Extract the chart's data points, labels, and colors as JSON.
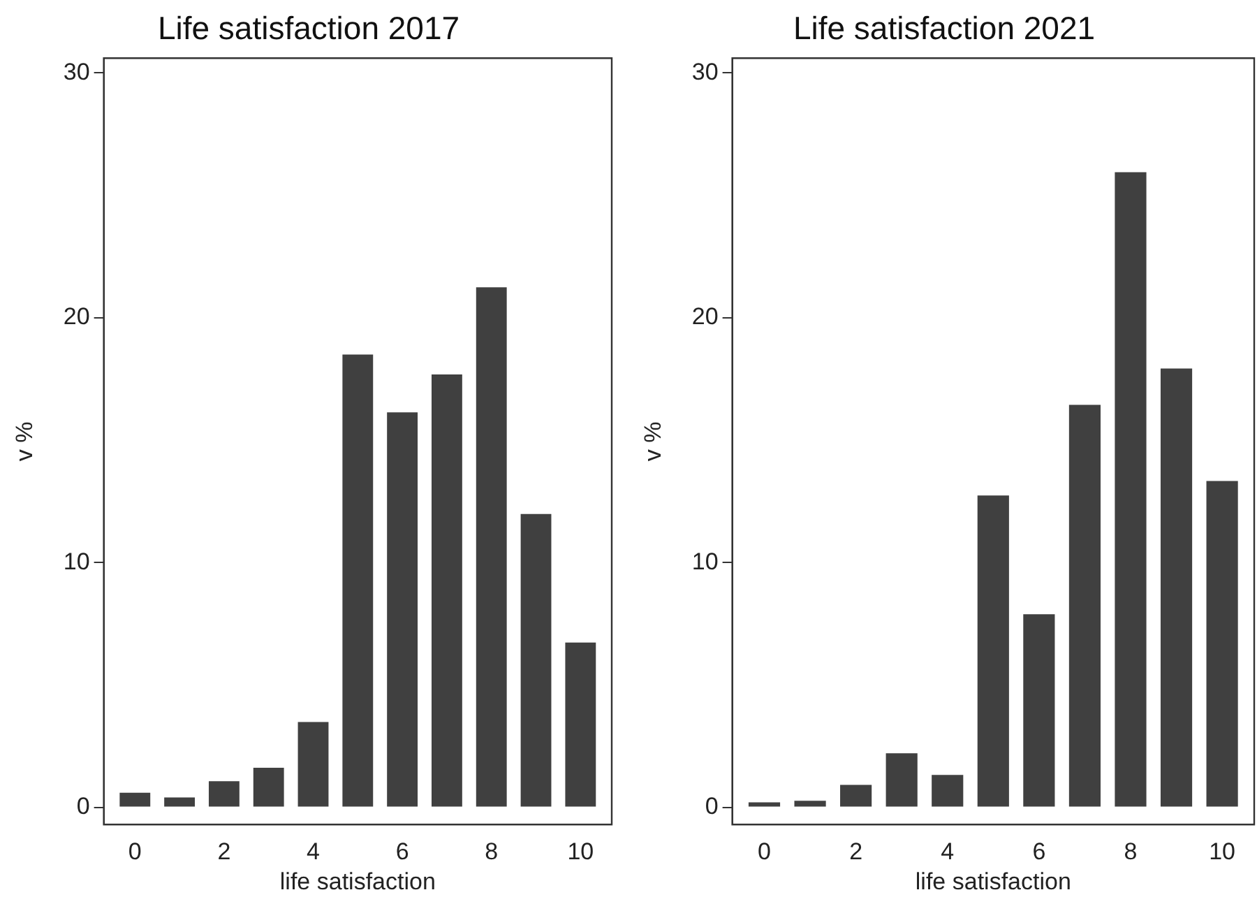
{
  "chart_data": [
    {
      "type": "bar",
      "title": "Life satisfaction 2017",
      "xlabel": "life satisfaction",
      "ylabel": "v %",
      "x": [
        0,
        1,
        2,
        3,
        4,
        5,
        6,
        7,
        8,
        9,
        10
      ],
      "series": [
        {
          "color": "#404040",
          "values": [
            0.66,
            0.47,
            1.13,
            1.68,
            3.55,
            18.55,
            16.19,
            17.74,
            21.3,
            12.04,
            6.79
          ]
        }
      ],
      "xlim": [
        -0.7,
        10.7
      ],
      "xticks": [
        0,
        2,
        4,
        6,
        8,
        10
      ],
      "ylim": [
        -0.7,
        30.6
      ],
      "yticks": [
        0,
        10,
        20,
        30
      ],
      "grid": false,
      "legend": false
    },
    {
      "type": "bar",
      "title": "Life satisfaction 2021",
      "xlabel": "life satisfaction",
      "ylabel": "v %",
      "x": [
        0,
        1,
        2,
        3,
        4,
        5,
        6,
        7,
        8,
        9,
        10
      ],
      "series": [
        {
          "color": "#404040",
          "values": [
            0.27,
            0.33,
            0.98,
            2.27,
            1.39,
            12.8,
            7.95,
            16.5,
            26.0,
            17.98,
            13.39
          ]
        }
      ],
      "xlim": [
        -0.7,
        10.7
      ],
      "xticks": [
        0,
        2,
        4,
        6,
        8,
        10
      ],
      "ylim": [
        -0.7,
        30.6
      ],
      "yticks": [
        0,
        10,
        20,
        30
      ],
      "grid": false,
      "legend": false
    }
  ]
}
